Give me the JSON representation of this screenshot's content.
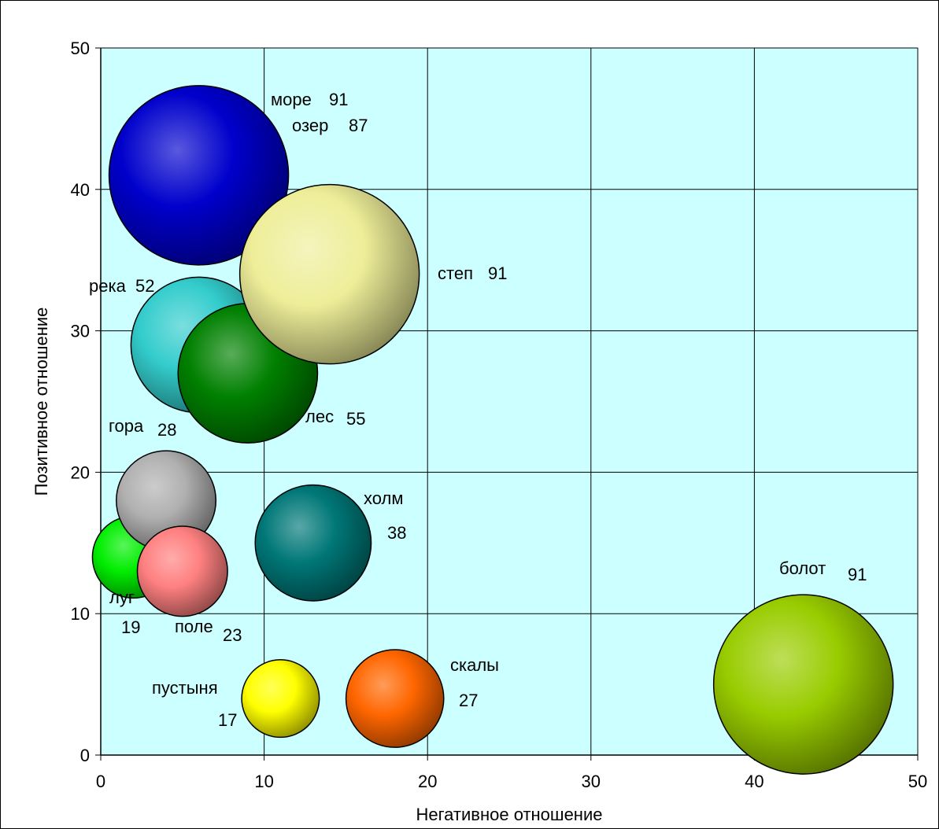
{
  "chart_data": {
    "type": "bubble",
    "xlabel": "Негативное отношение",
    "ylabel": "Позитивное отношение",
    "xlim": [
      0,
      50
    ],
    "ylim": [
      0,
      50
    ],
    "xticks": [
      0,
      10,
      20,
      30,
      40,
      50
    ],
    "yticks": [
      0,
      10,
      20,
      30,
      40,
      50
    ],
    "grid": true,
    "plot_background": "#ccffff",
    "points": [
      {
        "label": "море",
        "size_label": "91",
        "x": 6,
        "y": 41,
        "size": 91,
        "color": "#0000cc"
      },
      {
        "label": "озер",
        "size_label": "87",
        "x": 6,
        "y": 41,
        "size": 87,
        "color": "#0000cc"
      },
      {
        "label": "степ",
        "size_label": "91",
        "x": 14,
        "y": 34,
        "size": 91,
        "color": "#eeee99"
      },
      {
        "label": "река",
        "size_label": "52",
        "x": 6,
        "y": 29,
        "size": 52,
        "color": "#33cccc"
      },
      {
        "label": "лес",
        "size_label": "55",
        "x": 9,
        "y": 27,
        "size": 55,
        "color": "#008000"
      },
      {
        "label": "гора",
        "size_label": "28",
        "x": 4,
        "y": 18,
        "size": 28,
        "color": "#b0b0b0"
      },
      {
        "label": "холм",
        "size_label": "38",
        "x": 13,
        "y": 15,
        "size": 38,
        "color": "#007777"
      },
      {
        "label": "луг",
        "size_label": "19",
        "x": 2,
        "y": 14,
        "size": 19,
        "color": "#00ee00"
      },
      {
        "label": "поле",
        "size_label": "23",
        "x": 5,
        "y": 13,
        "size": 23,
        "color": "#ff8080"
      },
      {
        "label": "пустыня",
        "size_label": "17",
        "x": 11,
        "y": 4,
        "size": 17,
        "color": "#ffff00"
      },
      {
        "label": "скалы",
        "size_label": "27",
        "x": 18,
        "y": 4,
        "size": 27,
        "color": "#ff6600"
      },
      {
        "label": "болот",
        "size_label": "91",
        "x": 43,
        "y": 5,
        "size": 91,
        "color": "#99cc00"
      }
    ]
  }
}
